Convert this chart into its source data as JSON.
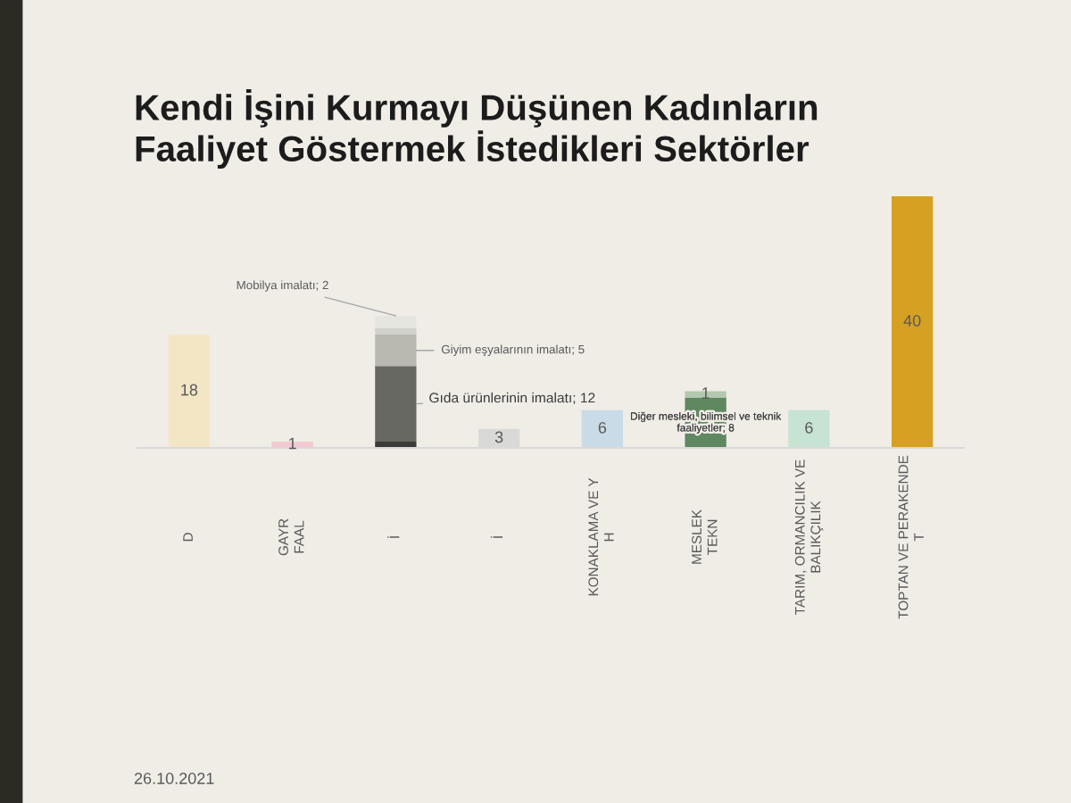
{
  "chart_data": {
    "type": "bar",
    "title": "Kendi İşini Kurmayı Düşünen Kadınların\nFaaliyet Göstermek İstedikleri Sektörler",
    "categories": [
      "D",
      "GAYR\nFAAL",
      "İ",
      "İ",
      "KONAKLAMA VE Y\nH",
      "MESLEK\nTEKN",
      "TARIM, ORMANCILIK VE\nBALIKÇILIK",
      "TOPTAN VE PERAKENDE\nT"
    ],
    "stacked": true,
    "tick_labels": "x",
    "series": [
      {
        "colors": [
          "#f3e6c4",
          "#f2c9d1",
          "#3b3b37",
          "#d9d9d7",
          "#c9dbe6",
          "#5f8760",
          "#c6e3d3",
          "#d6a022"
        ],
        "values": [
          18,
          1,
          1,
          3,
          6,
          8,
          6,
          40
        ],
        "value_labels": [
          "18",
          "1",
          null,
          "3",
          "6",
          "Diğer mesleki, bilimsel ve teknik\nfaaliyetler; 8",
          "6",
          "40"
        ]
      },
      {
        "colors": [
          null,
          null,
          "#686862",
          null,
          null,
          "#b4c8b0",
          null,
          null
        ],
        "values": [
          null,
          null,
          12,
          null,
          null,
          1,
          null,
          null
        ],
        "value_labels": [
          null,
          null,
          "Gıda ürünlerinin imalatı; 12",
          null,
          null,
          "1",
          null,
          null
        ]
      },
      {
        "color": "#b9b9b2",
        "values": [
          null,
          null,
          5,
          null,
          null,
          null,
          null,
          null
        ],
        "value_labels": [
          null,
          null,
          "Giyim eşyalarının imalatı; 5",
          null,
          null,
          null,
          null,
          null
        ]
      },
      {
        "color": "#d2d2cc",
        "values": [
          null,
          null,
          1,
          null,
          null,
          null,
          null,
          null
        ]
      },
      {
        "color": "#e6e6e1",
        "values": [
          null,
          null,
          2,
          null,
          null,
          null,
          null,
          null
        ],
        "value_labels": [
          null,
          null,
          "Mobilya imalatı; 2",
          null,
          null,
          null,
          null,
          null
        ]
      }
    ],
    "annotations": [
      "26.10.2021"
    ]
  }
}
